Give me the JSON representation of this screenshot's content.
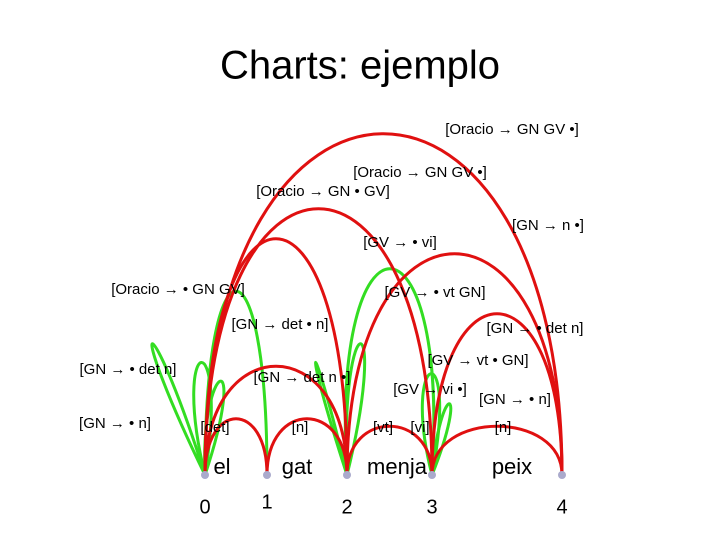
{
  "title": "Charts: ejemplo",
  "words": [
    "el",
    "gat",
    "menja",
    "peix"
  ],
  "positions": [
    "0",
    "1",
    "2",
    "3",
    "4"
  ],
  "edges": [
    {
      "label": "[Oracio → GN GV •]"
    },
    {
      "label": "[Oracio → GN GV •]"
    },
    {
      "label": "[Oracio → GN • GV]"
    },
    {
      "label": "[GN → n •]"
    },
    {
      "label": "[GV → • vi]"
    },
    {
      "label": "[Oracio → • GN GV]"
    },
    {
      "label": "[GV → • vt GN]"
    },
    {
      "label": "[GN → det • n]"
    },
    {
      "label": "[GN → • det n]"
    },
    {
      "label": "[GN → • det n]"
    },
    {
      "label": "[GV → vt • GN]"
    },
    {
      "label": "[GN → det n •]"
    },
    {
      "label": "[GV → vi •]"
    },
    {
      "label": "[GN → • n]"
    },
    {
      "label": "[GN → • n]"
    },
    {
      "label": "[det]"
    },
    {
      "label": "[n]"
    },
    {
      "label": "[vt]"
    },
    {
      "label": "[vi]"
    },
    {
      "label": "[n]"
    }
  ]
}
